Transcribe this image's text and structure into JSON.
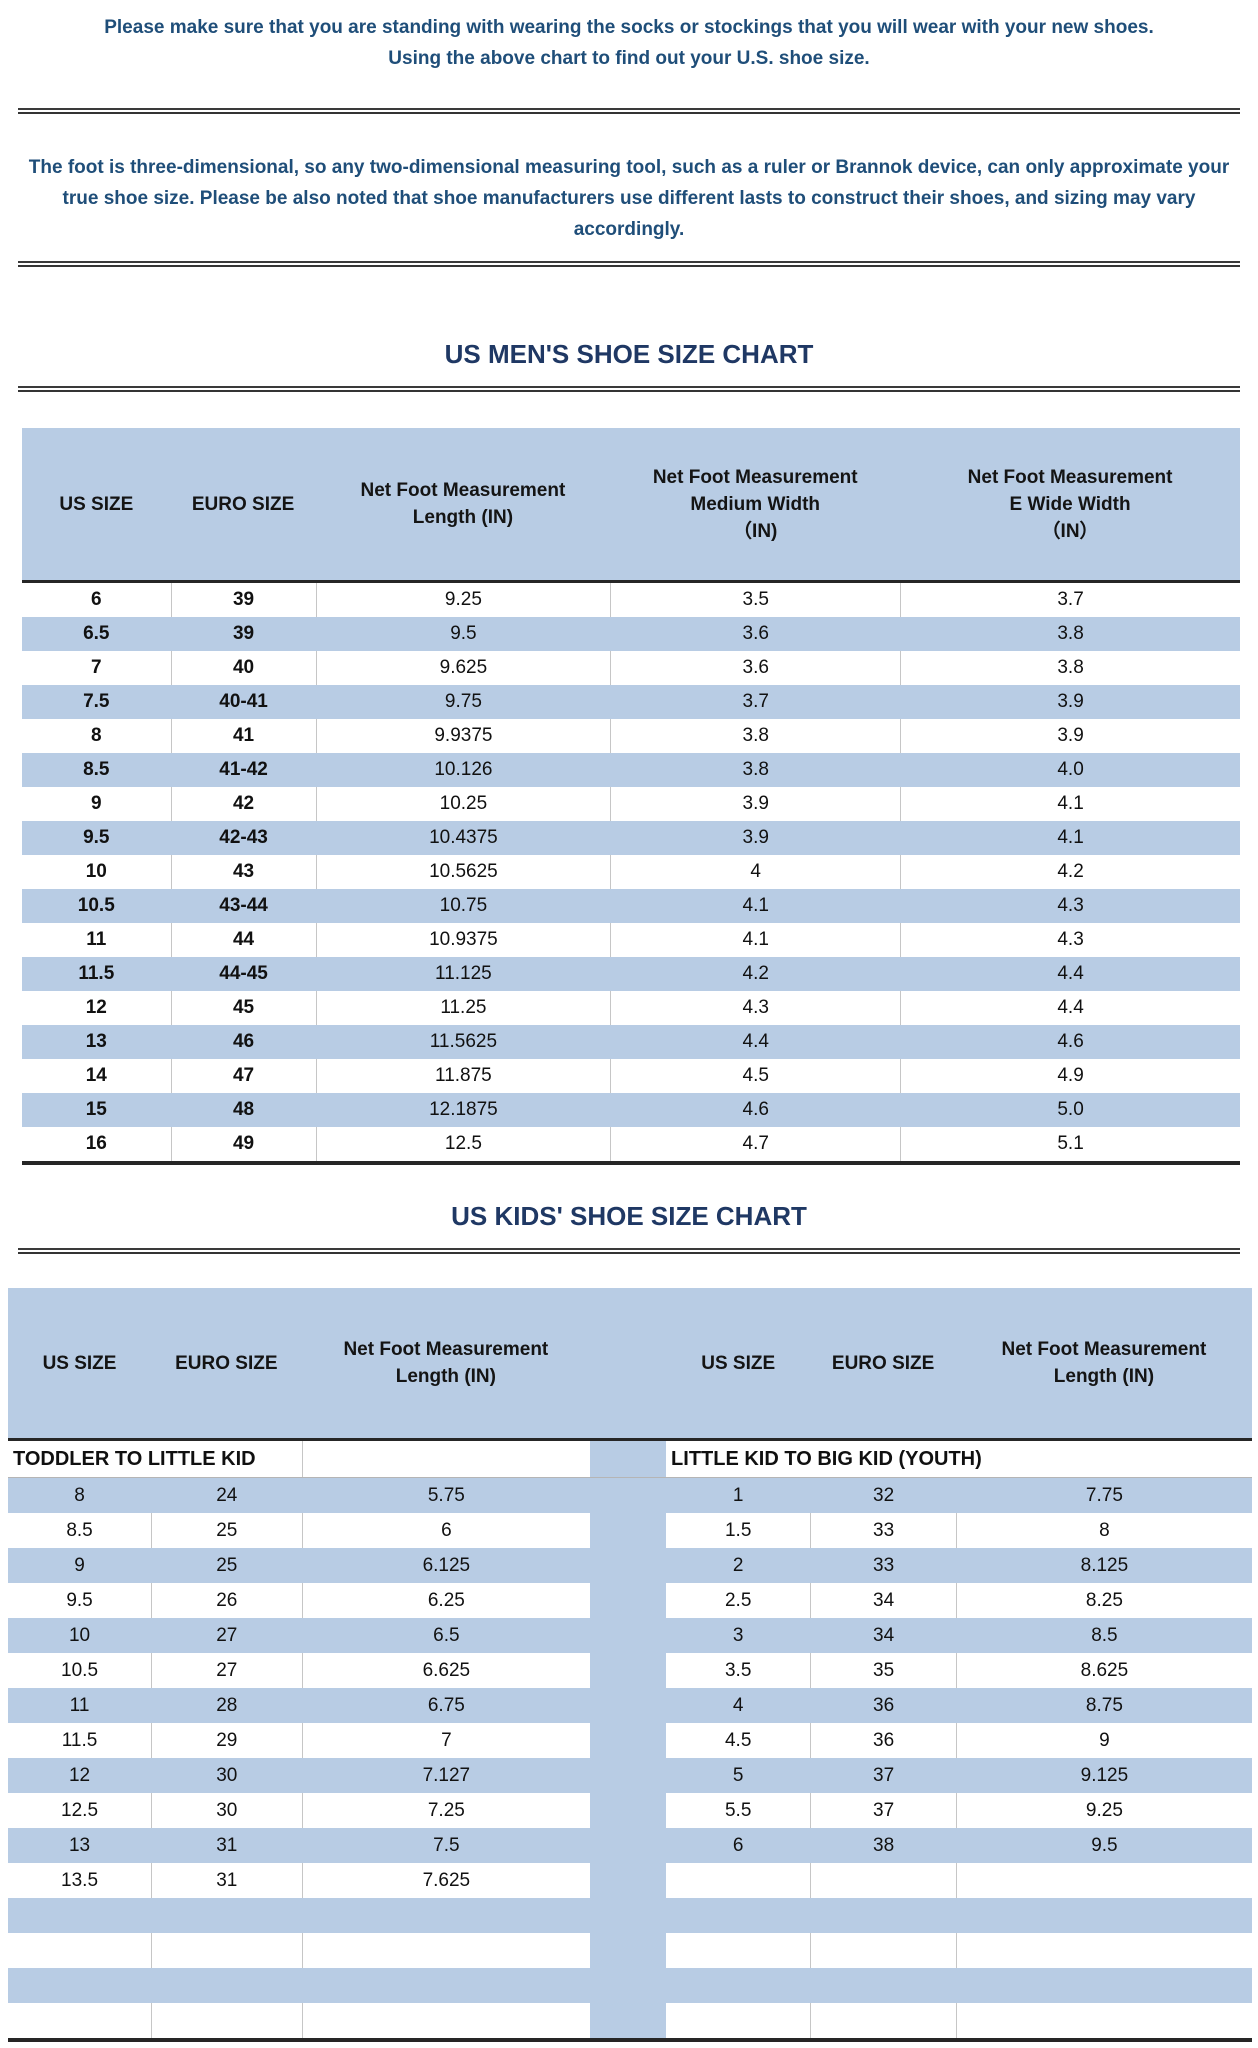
{
  "colors": {
    "stripe_blue": "#b8cce4",
    "title_navy": "#1f3864",
    "body_text_blue": "#1f4e79",
    "dark_line": "#262626"
  },
  "intro": "Please make sure that you are standing with wearing the socks or stockings that you will wear with your new shoes.\nUsing the above chart to find out your U.S. shoe size.",
  "note": "The foot is three-dimensional, so any two-dimensional measuring tool, such as a ruler or Brannok device, can only approximate your true shoe size. Please be also noted that shoe manufacturers use different lasts to construct their shoes, and sizing may vary accordingly.",
  "mens_chart": {
    "title": "US MEN'S SHOE SIZE CHART",
    "headers": {
      "us": "US SIZE",
      "euro": "EURO SIZE",
      "length": "Net Foot Measurement\nLength (IN)",
      "medium": "Net Foot Measurement\nMedium Width\n（IN)",
      "wide": "Net Foot Measurement\nE Wide Width\n（IN）"
    },
    "rows": [
      {
        "us": "6",
        "euro": "39",
        "length": "9.25",
        "medium": "3.5",
        "wide": "3.7"
      },
      {
        "us": "6.5",
        "euro": "39",
        "length": "9.5",
        "medium": "3.6",
        "wide": "3.8"
      },
      {
        "us": "7",
        "euro": "40",
        "length": "9.625",
        "medium": "3.6",
        "wide": "3.8"
      },
      {
        "us": "7.5",
        "euro": "40-41",
        "length": "9.75",
        "medium": "3.7",
        "wide": "3.9"
      },
      {
        "us": "8",
        "euro": "41",
        "length": "9.9375",
        "medium": "3.8",
        "wide": "3.9"
      },
      {
        "us": "8.5",
        "euro": "41-42",
        "length": "10.126",
        "medium": "3.8",
        "wide": "4.0"
      },
      {
        "us": "9",
        "euro": "42",
        "length": "10.25",
        "medium": "3.9",
        "wide": "4.1"
      },
      {
        "us": "9.5",
        "euro": "42-43",
        "length": "10.4375",
        "medium": "3.9",
        "wide": "4.1"
      },
      {
        "us": "10",
        "euro": "43",
        "length": "10.5625",
        "medium": "4",
        "wide": "4.2"
      },
      {
        "us": "10.5",
        "euro": "43-44",
        "length": "10.75",
        "medium": "4.1",
        "wide": "4.3"
      },
      {
        "us": "11",
        "euro": "44",
        "length": "10.9375",
        "medium": "4.1",
        "wide": "4.3"
      },
      {
        "us": "11.5",
        "euro": "44-45",
        "length": "11.125",
        "medium": "4.2",
        "wide": "4.4"
      },
      {
        "us": "12",
        "euro": "45",
        "length": "11.25",
        "medium": "4.3",
        "wide": "4.4"
      },
      {
        "us": "13",
        "euro": "46",
        "length": "11.5625",
        "medium": "4.4",
        "wide": "4.6"
      },
      {
        "us": "14",
        "euro": "47",
        "length": "11.875",
        "medium": "4.5",
        "wide": "4.9"
      },
      {
        "us": "15",
        "euro": "48",
        "length": "12.1875",
        "medium": "4.6",
        "wide": "5.0"
      },
      {
        "us": "16",
        "euro": "49",
        "length": "12.5",
        "medium": "4.7",
        "wide": "5.1"
      }
    ]
  },
  "kids_chart": {
    "title": "US KIDS' SHOE SIZE CHART",
    "headers": {
      "us": "US SIZE",
      "euro": "EURO SIZE",
      "length": "Net Foot Measurement\nLength (IN)"
    },
    "left_section_label": "TODDLER TO LITTLE KID",
    "right_section_label": "LITTLE KID TO BIG KID (YOUTH)",
    "rows": [
      {
        "l_us": "8",
        "l_euro": "24",
        "l_len": "5.75",
        "r_us": "1",
        "r_euro": "32",
        "r_len": "7.75"
      },
      {
        "l_us": "8.5",
        "l_euro": "25",
        "l_len": "6",
        "r_us": "1.5",
        "r_euro": "33",
        "r_len": "8"
      },
      {
        "l_us": "9",
        "l_euro": "25",
        "l_len": "6.125",
        "r_us": "2",
        "r_euro": "33",
        "r_len": "8.125"
      },
      {
        "l_us": "9.5",
        "l_euro": "26",
        "l_len": "6.25",
        "r_us": "2.5",
        "r_euro": "34",
        "r_len": "8.25"
      },
      {
        "l_us": "10",
        "l_euro": "27",
        "l_len": "6.5",
        "r_us": "3",
        "r_euro": "34",
        "r_len": "8.5"
      },
      {
        "l_us": "10.5",
        "l_euro": "27",
        "l_len": "6.625",
        "r_us": "3.5",
        "r_euro": "35",
        "r_len": "8.625"
      },
      {
        "l_us": "11",
        "l_euro": "28",
        "l_len": "6.75",
        "r_us": "4",
        "r_euro": "36",
        "r_len": "8.75"
      },
      {
        "l_us": "11.5",
        "l_euro": "29",
        "l_len": "7",
        "r_us": "4.5",
        "r_euro": "36",
        "r_len": "9"
      },
      {
        "l_us": "12",
        "l_euro": "30",
        "l_len": "7.127",
        "r_us": "5",
        "r_euro": "37",
        "r_len": "9.125"
      },
      {
        "l_us": "12.5",
        "l_euro": "30",
        "l_len": "7.25",
        "r_us": "5.5",
        "r_euro": "37",
        "r_len": "9.25"
      },
      {
        "l_us": "13",
        "l_euro": "31",
        "l_len": "7.5",
        "r_us": "6",
        "r_euro": "38",
        "r_len": "9.5"
      },
      {
        "l_us": "13.5",
        "l_euro": "31",
        "l_len": "7.625",
        "r_us": "",
        "r_euro": "",
        "r_len": ""
      },
      {
        "l_us": "",
        "l_euro": "",
        "l_len": "",
        "r_us": "",
        "r_euro": "",
        "r_len": ""
      },
      {
        "l_us": "",
        "l_euro": "",
        "l_len": "",
        "r_us": "",
        "r_euro": "",
        "r_len": ""
      },
      {
        "l_us": "",
        "l_euro": "",
        "l_len": "",
        "r_us": "",
        "r_euro": "",
        "r_len": ""
      },
      {
        "l_us": "",
        "l_euro": "",
        "l_len": "",
        "r_us": "",
        "r_euro": "",
        "r_len": ""
      }
    ]
  }
}
